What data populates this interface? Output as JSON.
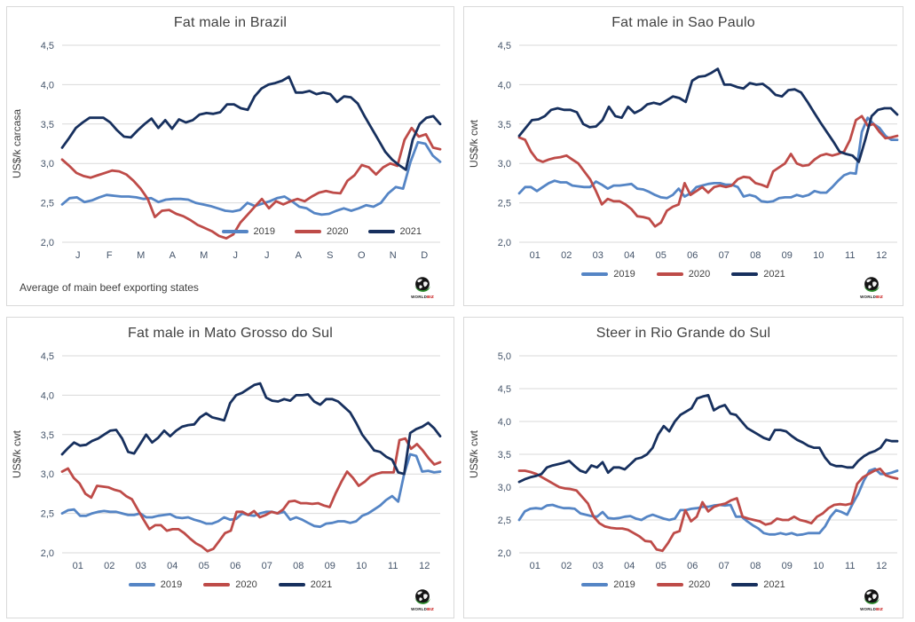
{
  "legend_labels": [
    "2019",
    "2020",
    "2021"
  ],
  "colors": {
    "y2019": "#5585C5",
    "y2020": "#BE4B48",
    "y2021": "#17305E",
    "gridline": "#D9D9D9",
    "tick_text": "#44546A",
    "title_text": "#404040"
  },
  "logo": {
    "text": "WORLD",
    "accent": "BIZ"
  },
  "chart_data": [
    {
      "type": "line",
      "title": "Fat male in Brazil",
      "ylabel": "US$/k carcasa",
      "note": "Average of main beef exporting states",
      "ylim": [
        2.0,
        4.5
      ],
      "ytick_step": 0.5,
      "ytick_labels": [
        "2,0",
        "2,5",
        "3,0",
        "3,5",
        "4,0",
        "4,5"
      ],
      "categories": [
        "J",
        "F",
        "M",
        "A",
        "M",
        "J",
        "J",
        "A",
        "S",
        "O",
        "N",
        "D"
      ],
      "legend_position": "inside-bottom-right",
      "grid": "horizontal",
      "series": [
        {
          "name": "2019",
          "color": "#5585C5",
          "values": [
            2.48,
            2.56,
            2.57,
            2.51,
            2.53,
            2.57,
            2.6,
            2.59,
            2.58,
            2.58,
            2.57,
            2.55,
            2.56,
            2.51,
            2.54,
            2.55,
            2.55,
            2.54,
            2.5,
            2.48,
            2.46,
            2.43,
            2.4,
            2.39,
            2.41,
            2.5,
            2.46,
            2.49,
            2.52,
            2.56,
            2.58,
            2.52,
            2.45,
            2.43,
            2.37,
            2.35,
            2.36,
            2.4,
            2.43,
            2.4,
            2.43,
            2.47,
            2.45,
            2.5,
            2.62,
            2.7,
            2.68,
            3.02,
            3.27,
            3.25,
            3.1,
            3.02
          ]
        },
        {
          "name": "2020",
          "color": "#BE4B48",
          "values": [
            3.05,
            2.97,
            2.88,
            2.84,
            2.82,
            2.85,
            2.88,
            2.91,
            2.9,
            2.86,
            2.78,
            2.68,
            2.55,
            2.32,
            2.4,
            2.41,
            2.36,
            2.33,
            2.28,
            2.22,
            2.18,
            2.14,
            2.08,
            2.05,
            2.1,
            2.25,
            2.35,
            2.45,
            2.55,
            2.43,
            2.52,
            2.48,
            2.52,
            2.55,
            2.52,
            2.58,
            2.63,
            2.65,
            2.63,
            2.62,
            2.78,
            2.85,
            2.98,
            2.95,
            2.86,
            2.95,
            3.0,
            2.97,
            3.3,
            3.45,
            3.34,
            3.37,
            3.2,
            3.18
          ]
        },
        {
          "name": "2021",
          "color": "#17305E",
          "values": [
            3.2,
            3.32,
            3.45,
            3.52,
            3.58,
            3.58,
            3.58,
            3.52,
            3.42,
            3.34,
            3.33,
            3.42,
            3.5,
            3.57,
            3.45,
            3.55,
            3.44,
            3.56,
            3.52,
            3.55,
            3.62,
            3.64,
            3.63,
            3.65,
            3.75,
            3.75,
            3.7,
            3.68,
            3.85,
            3.95,
            4.0,
            4.02,
            4.05,
            4.1,
            3.9,
            3.9,
            3.92,
            3.88,
            3.9,
            3.88,
            3.78,
            3.85,
            3.84,
            3.76,
            3.6,
            3.45,
            3.3,
            3.15,
            3.05,
            2.98,
            2.92,
            3.3,
            3.5,
            3.58,
            3.6,
            3.5
          ]
        }
      ]
    },
    {
      "type": "line",
      "title": "Fat male in Sao Paulo",
      "ylabel": "US$/k cwt",
      "ylim": [
        2.0,
        4.5
      ],
      "ytick_step": 0.5,
      "ytick_labels": [
        "2,0",
        "2,5",
        "3,0",
        "3,5",
        "4,0",
        "4,5"
      ],
      "categories": [
        "01",
        "02",
        "03",
        "04",
        "05",
        "06",
        "07",
        "08",
        "09",
        "10",
        "11",
        "12"
      ],
      "legend_position": "below-center",
      "grid": "horizontal",
      "series": [
        {
          "name": "2019",
          "color": "#5585C5",
          "values": [
            2.62,
            2.7,
            2.7,
            2.65,
            2.7,
            2.75,
            2.78,
            2.76,
            2.76,
            2.72,
            2.71,
            2.7,
            2.7,
            2.77,
            2.73,
            2.68,
            2.72,
            2.72,
            2.73,
            2.74,
            2.68,
            2.67,
            2.64,
            2.6,
            2.57,
            2.56,
            2.6,
            2.68,
            2.58,
            2.62,
            2.7,
            2.72,
            2.74,
            2.75,
            2.75,
            2.73,
            2.73,
            2.7,
            2.58,
            2.6,
            2.58,
            2.52,
            2.51,
            2.52,
            2.56,
            2.57,
            2.57,
            2.6,
            2.58,
            2.6,
            2.65,
            2.63,
            2.63,
            2.7,
            2.78,
            2.85,
            2.88,
            2.87,
            3.4,
            3.58,
            3.5,
            3.45,
            3.35,
            3.3,
            3.3
          ]
        },
        {
          "name": "2020",
          "color": "#BE4B48",
          "values": [
            3.33,
            3.3,
            3.15,
            3.05,
            3.02,
            3.05,
            3.07,
            3.08,
            3.1,
            3.05,
            3.0,
            2.9,
            2.8,
            2.65,
            2.48,
            2.55,
            2.52,
            2.52,
            2.48,
            2.42,
            2.33,
            2.32,
            2.3,
            2.2,
            2.25,
            2.4,
            2.45,
            2.48,
            2.75,
            2.6,
            2.65,
            2.7,
            2.63,
            2.7,
            2.72,
            2.7,
            2.72,
            2.8,
            2.83,
            2.82,
            2.75,
            2.73,
            2.7,
            2.9,
            2.95,
            3.0,
            3.12,
            3.0,
            2.97,
            2.98,
            3.05,
            3.1,
            3.12,
            3.1,
            3.12,
            3.15,
            3.3,
            3.55,
            3.6,
            3.48,
            3.5,
            3.4,
            3.32,
            3.33,
            3.35
          ]
        },
        {
          "name": "2021",
          "color": "#17305E",
          "values": [
            3.35,
            3.45,
            3.55,
            3.56,
            3.6,
            3.68,
            3.7,
            3.68,
            3.68,
            3.65,
            3.5,
            3.46,
            3.47,
            3.55,
            3.72,
            3.6,
            3.58,
            3.72,
            3.64,
            3.68,
            3.75,
            3.77,
            3.75,
            3.8,
            3.85,
            3.83,
            3.78,
            4.05,
            4.1,
            4.11,
            4.15,
            4.2,
            4.0,
            4.0,
            3.97,
            3.95,
            4.02,
            4.0,
            4.01,
            3.95,
            3.87,
            3.85,
            3.93,
            3.94,
            3.9,
            3.78,
            3.65,
            3.52,
            3.4,
            3.28,
            3.15,
            3.12,
            3.1,
            3.02,
            3.3,
            3.6,
            3.68,
            3.7,
            3.7,
            3.62
          ]
        }
      ]
    },
    {
      "type": "line",
      "title": "Fat male in Mato Grosso do Sul",
      "ylabel": "US$/k cwt",
      "ylim": [
        2.0,
        4.5
      ],
      "ytick_step": 0.5,
      "ytick_labels": [
        "2,0",
        "2,5",
        "3,0",
        "3,5",
        "4,0",
        "4,5"
      ],
      "categories": [
        "01",
        "02",
        "03",
        "04",
        "05",
        "06",
        "07",
        "08",
        "09",
        "10",
        "11",
        "12"
      ],
      "legend_position": "below-center",
      "grid": "horizontal",
      "series": [
        {
          "name": "2019",
          "color": "#5585C5",
          "values": [
            2.5,
            2.54,
            2.55,
            2.47,
            2.47,
            2.5,
            2.52,
            2.53,
            2.52,
            2.52,
            2.5,
            2.48,
            2.48,
            2.5,
            2.45,
            2.45,
            2.47,
            2.48,
            2.49,
            2.45,
            2.44,
            2.45,
            2.42,
            2.4,
            2.37,
            2.37,
            2.4,
            2.45,
            2.42,
            2.43,
            2.5,
            2.48,
            2.47,
            2.5,
            2.52,
            2.52,
            2.5,
            2.52,
            2.42,
            2.45,
            2.42,
            2.38,
            2.34,
            2.33,
            2.37,
            2.38,
            2.4,
            2.4,
            2.38,
            2.4,
            2.47,
            2.5,
            2.55,
            2.6,
            2.67,
            2.72,
            2.65,
            3.0,
            3.25,
            3.23,
            3.03,
            3.04,
            3.02,
            3.03
          ]
        },
        {
          "name": "2020",
          "color": "#BE4B48",
          "values": [
            3.03,
            3.07,
            2.95,
            2.88,
            2.75,
            2.7,
            2.85,
            2.84,
            2.83,
            2.8,
            2.78,
            2.72,
            2.68,
            2.55,
            2.42,
            2.3,
            2.35,
            2.35,
            2.28,
            2.3,
            2.3,
            2.25,
            2.18,
            2.12,
            2.08,
            2.02,
            2.05,
            2.15,
            2.25,
            2.28,
            2.52,
            2.52,
            2.48,
            2.53,
            2.45,
            2.48,
            2.52,
            2.5,
            2.55,
            2.65,
            2.66,
            2.63,
            2.63,
            2.62,
            2.63,
            2.6,
            2.58,
            2.75,
            2.9,
            3.03,
            2.95,
            2.85,
            2.9,
            2.97,
            3.0,
            3.02,
            3.02,
            3.02,
            3.43,
            3.45,
            3.32,
            3.38,
            3.3,
            3.2,
            3.12,
            3.15
          ]
        },
        {
          "name": "2021",
          "color": "#17305E",
          "values": [
            3.25,
            3.33,
            3.4,
            3.36,
            3.37,
            3.42,
            3.45,
            3.5,
            3.55,
            3.56,
            3.45,
            3.28,
            3.26,
            3.38,
            3.5,
            3.4,
            3.46,
            3.55,
            3.48,
            3.55,
            3.6,
            3.62,
            3.63,
            3.72,
            3.77,
            3.72,
            3.7,
            3.68,
            3.9,
            4.0,
            4.03,
            4.08,
            4.13,
            4.15,
            3.97,
            3.93,
            3.92,
            3.95,
            3.93,
            4.0,
            4.0,
            4.01,
            3.92,
            3.88,
            3.95,
            3.95,
            3.92,
            3.85,
            3.78,
            3.65,
            3.5,
            3.4,
            3.3,
            3.28,
            3.22,
            3.18,
            3.02,
            3.0,
            3.52,
            3.57,
            3.6,
            3.65,
            3.58,
            3.48
          ]
        }
      ]
    },
    {
      "type": "line",
      "title": "Steer in Rio Grande do Sul",
      "ylabel": "US$/k cwt",
      "ylim": [
        2.0,
        5.0
      ],
      "ytick_step": 0.5,
      "ytick_labels": [
        "2,0",
        "2,5",
        "3,0",
        "3,5",
        "4,0",
        "4,5",
        "5,0"
      ],
      "categories": [
        "01",
        "02",
        "03",
        "04",
        "05",
        "06",
        "07",
        "08",
        "09",
        "10",
        "11",
        "12"
      ],
      "legend_position": "below-center",
      "grid": "horizontal",
      "series": [
        {
          "name": "2019",
          "color": "#5585C5",
          "values": [
            2.5,
            2.63,
            2.67,
            2.68,
            2.67,
            2.72,
            2.73,
            2.7,
            2.68,
            2.68,
            2.67,
            2.6,
            2.58,
            2.56,
            2.55,
            2.62,
            2.53,
            2.52,
            2.53,
            2.55,
            2.56,
            2.52,
            2.5,
            2.55,
            2.58,
            2.55,
            2.52,
            2.5,
            2.52,
            2.65,
            2.65,
            2.67,
            2.68,
            2.7,
            2.7,
            2.72,
            2.73,
            2.72,
            2.73,
            2.55,
            2.55,
            2.48,
            2.42,
            2.37,
            2.3,
            2.28,
            2.28,
            2.3,
            2.28,
            2.3,
            2.27,
            2.28,
            2.3,
            2.3,
            2.3,
            2.4,
            2.55,
            2.65,
            2.62,
            2.58,
            2.75,
            2.9,
            3.1,
            3.25,
            3.28,
            3.2,
            3.2,
            3.22,
            3.25
          ]
        },
        {
          "name": "2020",
          "color": "#BE4B48",
          "values": [
            3.25,
            3.25,
            3.23,
            3.2,
            3.15,
            3.1,
            3.05,
            3.0,
            2.98,
            2.97,
            2.95,
            2.85,
            2.75,
            2.55,
            2.45,
            2.4,
            2.38,
            2.37,
            2.37,
            2.35,
            2.3,
            2.25,
            2.18,
            2.17,
            2.05,
            2.03,
            2.15,
            2.3,
            2.33,
            2.65,
            2.48,
            2.55,
            2.77,
            2.63,
            2.7,
            2.73,
            2.75,
            2.8,
            2.83,
            2.55,
            2.52,
            2.5,
            2.48,
            2.43,
            2.45,
            2.52,
            2.5,
            2.5,
            2.55,
            2.5,
            2.48,
            2.45,
            2.55,
            2.6,
            2.68,
            2.73,
            2.74,
            2.73,
            2.75,
            3.05,
            3.15,
            3.2,
            3.25,
            3.28,
            3.18,
            3.15,
            3.13
          ]
        },
        {
          "name": "2021",
          "color": "#17305E",
          "values": [
            3.08,
            3.12,
            3.15,
            3.17,
            3.2,
            3.3,
            3.33,
            3.35,
            3.37,
            3.4,
            3.32,
            3.25,
            3.22,
            3.33,
            3.3,
            3.38,
            3.22,
            3.3,
            3.3,
            3.27,
            3.35,
            3.43,
            3.45,
            3.5,
            3.6,
            3.8,
            3.93,
            3.85,
            4.0,
            4.1,
            4.15,
            4.2,
            4.35,
            4.38,
            4.4,
            4.17,
            4.22,
            4.25,
            4.12,
            4.1,
            4.0,
            3.9,
            3.85,
            3.8,
            3.75,
            3.72,
            3.87,
            3.87,
            3.85,
            3.78,
            3.72,
            3.68,
            3.63,
            3.6,
            3.6,
            3.45,
            3.35,
            3.32,
            3.32,
            3.3,
            3.3,
            3.4,
            3.47,
            3.52,
            3.55,
            3.6,
            3.72,
            3.7,
            3.7
          ]
        }
      ]
    }
  ]
}
